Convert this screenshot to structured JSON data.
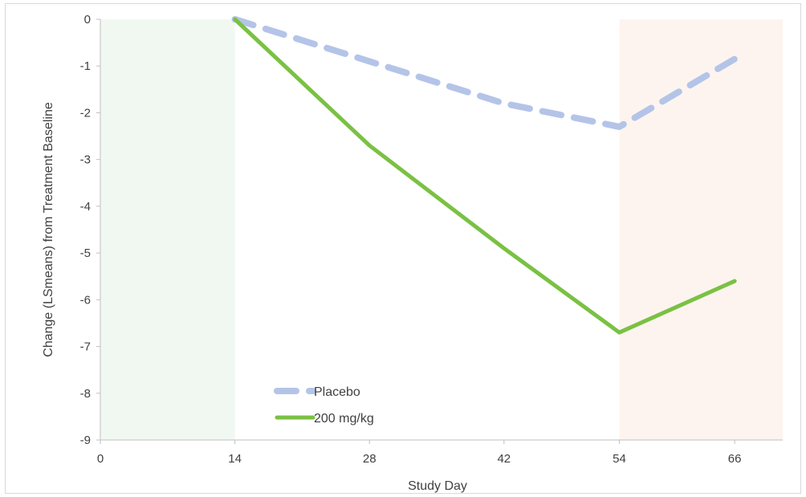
{
  "chart_data": {
    "type": "line",
    "title": "",
    "xlabel": "Study Day",
    "ylabel": "Change (LSmeans) from Treatment Baseline",
    "xlim": [
      0,
      71
    ],
    "ylim": [
      -9,
      0
    ],
    "xticks": [
      0,
      14,
      28,
      42,
      54,
      66
    ],
    "yticks": [
      0,
      -1,
      -2,
      -3,
      -4,
      -5,
      -6,
      -7,
      -8,
      -9
    ],
    "grid": false,
    "legend_position": "lower-left",
    "shaded_regions": [
      {
        "x_start": 0,
        "x_end": 14,
        "color": "#f1f8f1"
      },
      {
        "x_start": 54,
        "x_end": 71,
        "color": "#fdf4ef"
      }
    ],
    "series": [
      {
        "name": "Placebo",
        "style": "dashed",
        "color": "#b4c4e8",
        "x": [
          14,
          28,
          42,
          54,
          66
        ],
        "y": [
          0,
          -0.9,
          -1.8,
          -2.3,
          -0.85
        ]
      },
      {
        "name": "200 mg/kg",
        "style": "solid",
        "color": "#7ac143",
        "x": [
          14,
          28,
          42,
          54,
          66
        ],
        "y": [
          0,
          -2.7,
          -4.9,
          -6.7,
          -5.6
        ]
      }
    ]
  }
}
